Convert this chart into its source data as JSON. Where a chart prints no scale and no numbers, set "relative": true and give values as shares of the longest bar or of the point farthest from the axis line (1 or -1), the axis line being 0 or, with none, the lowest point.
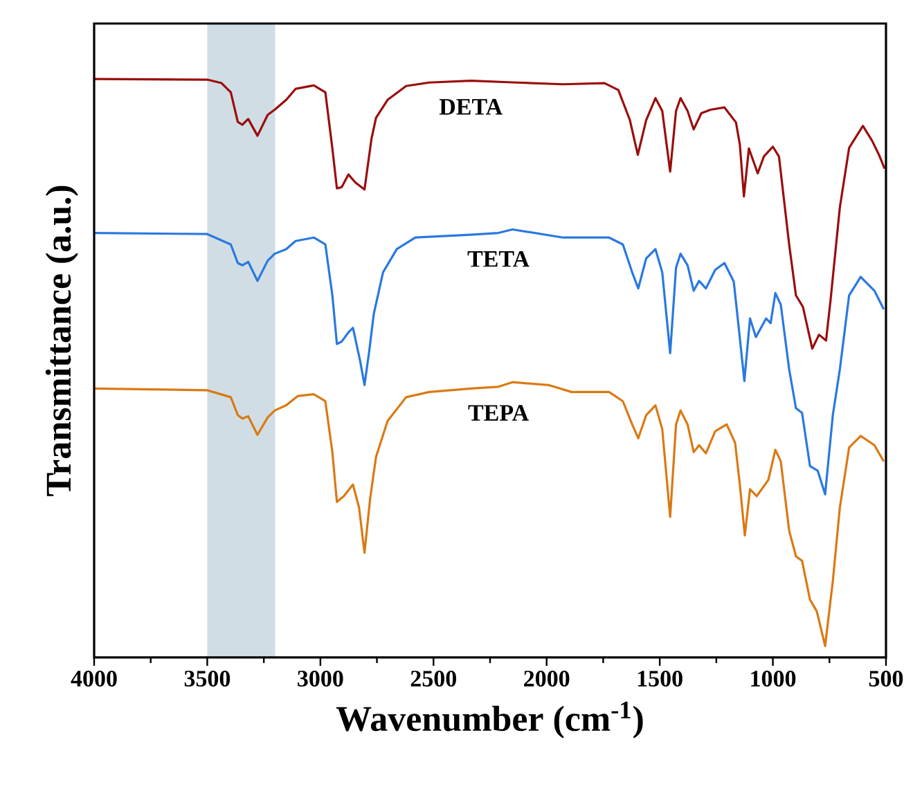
{
  "chart_data": {
    "type": "line",
    "relative": true,
    "xlabel": "Wavenumber (cm$^{-1}$)",
    "ylabel": "Transmittance (a.u.)",
    "xlim": [
      4000,
      500
    ],
    "xticks": [
      4000,
      3500,
      3000,
      2500,
      2000,
      1500,
      1000,
      500
    ],
    "bands": [
      {
        "axis": "x",
        "from": 3500,
        "to": 3200,
        "color": "#d0dde4"
      }
    ],
    "series": [
      {
        "name": "DETA",
        "color": "#9b0d0d",
        "x": [
          4000,
          3500,
          3437,
          3396,
          3365,
          3345,
          3319,
          3278,
          3233,
          3202,
          3151,
          3110,
          3029,
          2978,
          2947,
          2927,
          2906,
          2876,
          2845,
          2805,
          2774,
          2754,
          2703,
          2621,
          2519,
          2335,
          2133,
          1928,
          1744,
          1683,
          1632,
          1597,
          1560,
          1519,
          1489,
          1454,
          1428,
          1408,
          1377,
          1350,
          1316,
          1275,
          1214,
          1163,
          1146,
          1128,
          1106,
          1067,
          1040,
          1000,
          973,
          928,
          898,
          867,
          826,
          796,
          765,
          745,
          704,
          663,
          602,
          561,
          531,
          506
        ],
        "values": [
          1.0,
          0.999,
          0.993,
          0.977,
          0.926,
          0.921,
          0.931,
          0.902,
          0.938,
          0.947,
          0.964,
          0.983,
          0.989,
          0.977,
          0.88,
          0.811,
          0.813,
          0.835,
          0.821,
          0.809,
          0.897,
          0.933,
          0.964,
          0.988,
          0.994,
          0.997,
          0.994,
          0.991,
          0.993,
          0.981,
          0.929,
          0.869,
          0.929,
          0.967,
          0.945,
          0.84,
          0.945,
          0.967,
          0.945,
          0.913,
          0.941,
          0.947,
          0.951,
          0.925,
          0.887,
          0.797,
          0.88,
          0.837,
          0.866,
          0.883,
          0.866,
          0.714,
          0.626,
          0.606,
          0.534,
          0.558,
          0.548,
          0.618,
          0.778,
          0.881,
          0.919,
          0.893,
          0.869,
          0.845
        ]
      },
      {
        "name": "TETA",
        "color": "#2a78e0",
        "x": [
          4000,
          3500,
          3396,
          3365,
          3345,
          3319,
          3278,
          3233,
          3202,
          3151,
          3110,
          3029,
          2978,
          2947,
          2927,
          2906,
          2876,
          2856,
          2825,
          2805,
          2784,
          2764,
          2723,
          2662,
          2580,
          2335,
          2213,
          2151,
          1928,
          1724,
          1663,
          1622,
          1595,
          1560,
          1519,
          1489,
          1454,
          1428,
          1408,
          1377,
          1350,
          1326,
          1296,
          1255,
          1214,
          1173,
          1153,
          1126,
          1101,
          1075,
          1030,
          1010,
          989,
          965,
          928,
          898,
          871,
          836,
          802,
          769,
          735,
          704,
          663,
          612,
          551,
          510
        ],
        "values": [
          0.734,
          0.732,
          0.714,
          0.682,
          0.678,
          0.684,
          0.651,
          0.686,
          0.698,
          0.706,
          0.72,
          0.726,
          0.714,
          0.626,
          0.542,
          0.546,
          0.562,
          0.57,
          0.514,
          0.471,
          0.53,
          0.594,
          0.666,
          0.706,
          0.726,
          0.731,
          0.734,
          0.74,
          0.726,
          0.726,
          0.714,
          0.666,
          0.638,
          0.69,
          0.706,
          0.666,
          0.526,
          0.674,
          0.698,
          0.678,
          0.634,
          0.651,
          0.638,
          0.67,
          0.682,
          0.65,
          0.578,
          0.478,
          0.586,
          0.554,
          0.586,
          0.578,
          0.63,
          0.61,
          0.498,
          0.431,
          0.423,
          0.331,
          0.323,
          0.282,
          0.419,
          0.498,
          0.626,
          0.658,
          0.634,
          0.602
        ]
      },
      {
        "name": "TEPA",
        "color": "#d97a14",
        "x": [
          4000,
          3500,
          3396,
          3365,
          3345,
          3319,
          3278,
          3233,
          3202,
          3151,
          3100,
          3029,
          2978,
          2947,
          2927,
          2896,
          2856,
          2829,
          2805,
          2780,
          2754,
          2703,
          2621,
          2519,
          2335,
          2213,
          2151,
          1992,
          1890,
          1724,
          1663,
          1622,
          1595,
          1560,
          1519,
          1489,
          1454,
          1428,
          1408,
          1377,
          1350,
          1326,
          1296,
          1255,
          1204,
          1167,
          1146,
          1124,
          1101,
          1071,
          1020,
          989,
          965,
          928,
          898,
          871,
          836,
          806,
          769,
          735,
          704,
          663,
          612,
          551,
          510
        ],
        "values": [
          0.465,
          0.462,
          0.45,
          0.419,
          0.413,
          0.417,
          0.385,
          0.415,
          0.427,
          0.436,
          0.452,
          0.455,
          0.443,
          0.355,
          0.269,
          0.279,
          0.299,
          0.259,
          0.181,
          0.275,
          0.347,
          0.409,
          0.45,
          0.459,
          0.465,
          0.468,
          0.476,
          0.471,
          0.459,
          0.459,
          0.443,
          0.403,
          0.379,
          0.419,
          0.436,
          0.395,
          0.243,
          0.403,
          0.427,
          0.403,
          0.355,
          0.367,
          0.353,
          0.391,
          0.403,
          0.371,
          0.299,
          0.211,
          0.291,
          0.279,
          0.307,
          0.359,
          0.339,
          0.219,
          0.175,
          0.167,
          0.1,
          0.08,
          0.02,
          0.132,
          0.259,
          0.363,
          0.383,
          0.367,
          0.339
        ]
      }
    ]
  }
}
